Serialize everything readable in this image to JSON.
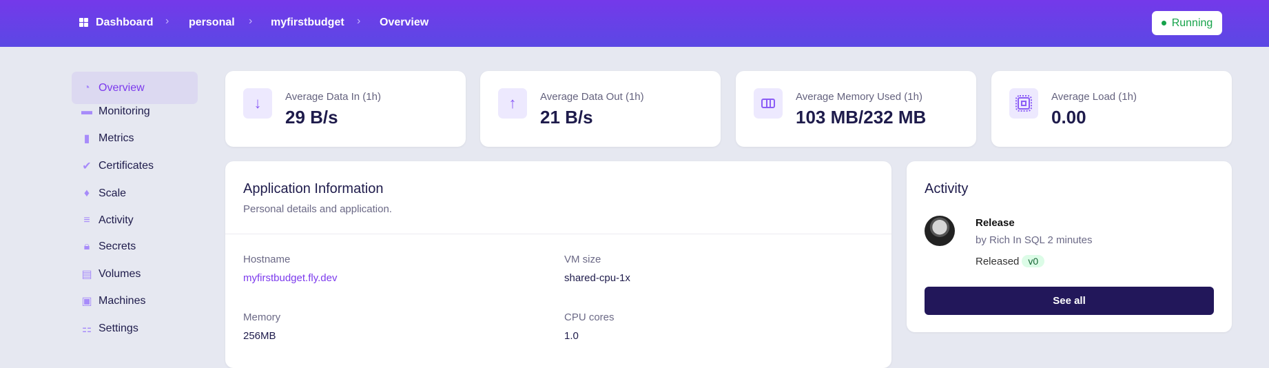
{
  "breadcrumb": [
    "Dashboard",
    "personal",
    "myfirstbudget",
    "Overview"
  ],
  "status": {
    "label": "Running",
    "color": "#16a34a"
  },
  "sidebar": {
    "items": [
      {
        "label": "Overview",
        "icon": "chart-pie-icon",
        "active": true
      },
      {
        "label": "Monitoring",
        "icon": "monitor-icon"
      },
      {
        "label": "Metrics",
        "icon": "bar-chart-icon"
      },
      {
        "label": "Certificates",
        "icon": "badge-check-icon"
      },
      {
        "label": "Scale",
        "icon": "scale-icon"
      },
      {
        "label": "Activity",
        "icon": "stack-icon"
      },
      {
        "label": "Secrets",
        "icon": "lock-icon"
      },
      {
        "label": "Volumes",
        "icon": "archive-icon"
      },
      {
        "label": "Machines",
        "icon": "cpu-icon"
      },
      {
        "label": "Settings",
        "icon": "toggles-icon"
      }
    ]
  },
  "stats": [
    {
      "label": "Average Data In (1h)",
      "value": "29 B/s",
      "icon": "arrow-down-icon"
    },
    {
      "label": "Average Data Out (1h)",
      "value": "21 B/s",
      "icon": "arrow-up-icon"
    },
    {
      "label": "Average Memory Used (1h)",
      "value": "103 MB/232 MB",
      "icon": "memory-icon"
    },
    {
      "label": "Average Load (1h)",
      "value": "0.00",
      "icon": "cpu-icon"
    }
  ],
  "app_info": {
    "title": "Application Information",
    "subtitle": "Personal details and application.",
    "fields": [
      {
        "label": "Hostname",
        "value": "myfirstbudget.fly.dev"
      },
      {
        "label": "VM size",
        "value": "shared-cpu-1x"
      },
      {
        "label": "Memory",
        "value": "256MB"
      },
      {
        "label": "CPU cores",
        "value": "1.0"
      }
    ]
  },
  "activity": {
    "title": "Activity",
    "items": [
      {
        "title": "Release",
        "by": "by Rich In SQL 2 minutes",
        "status": "Released",
        "version": "v0"
      }
    ],
    "see_all": "See all"
  },
  "colors": {
    "accent": "#7c3aed",
    "dark": "#22175a",
    "background": "#e6e8f1"
  }
}
